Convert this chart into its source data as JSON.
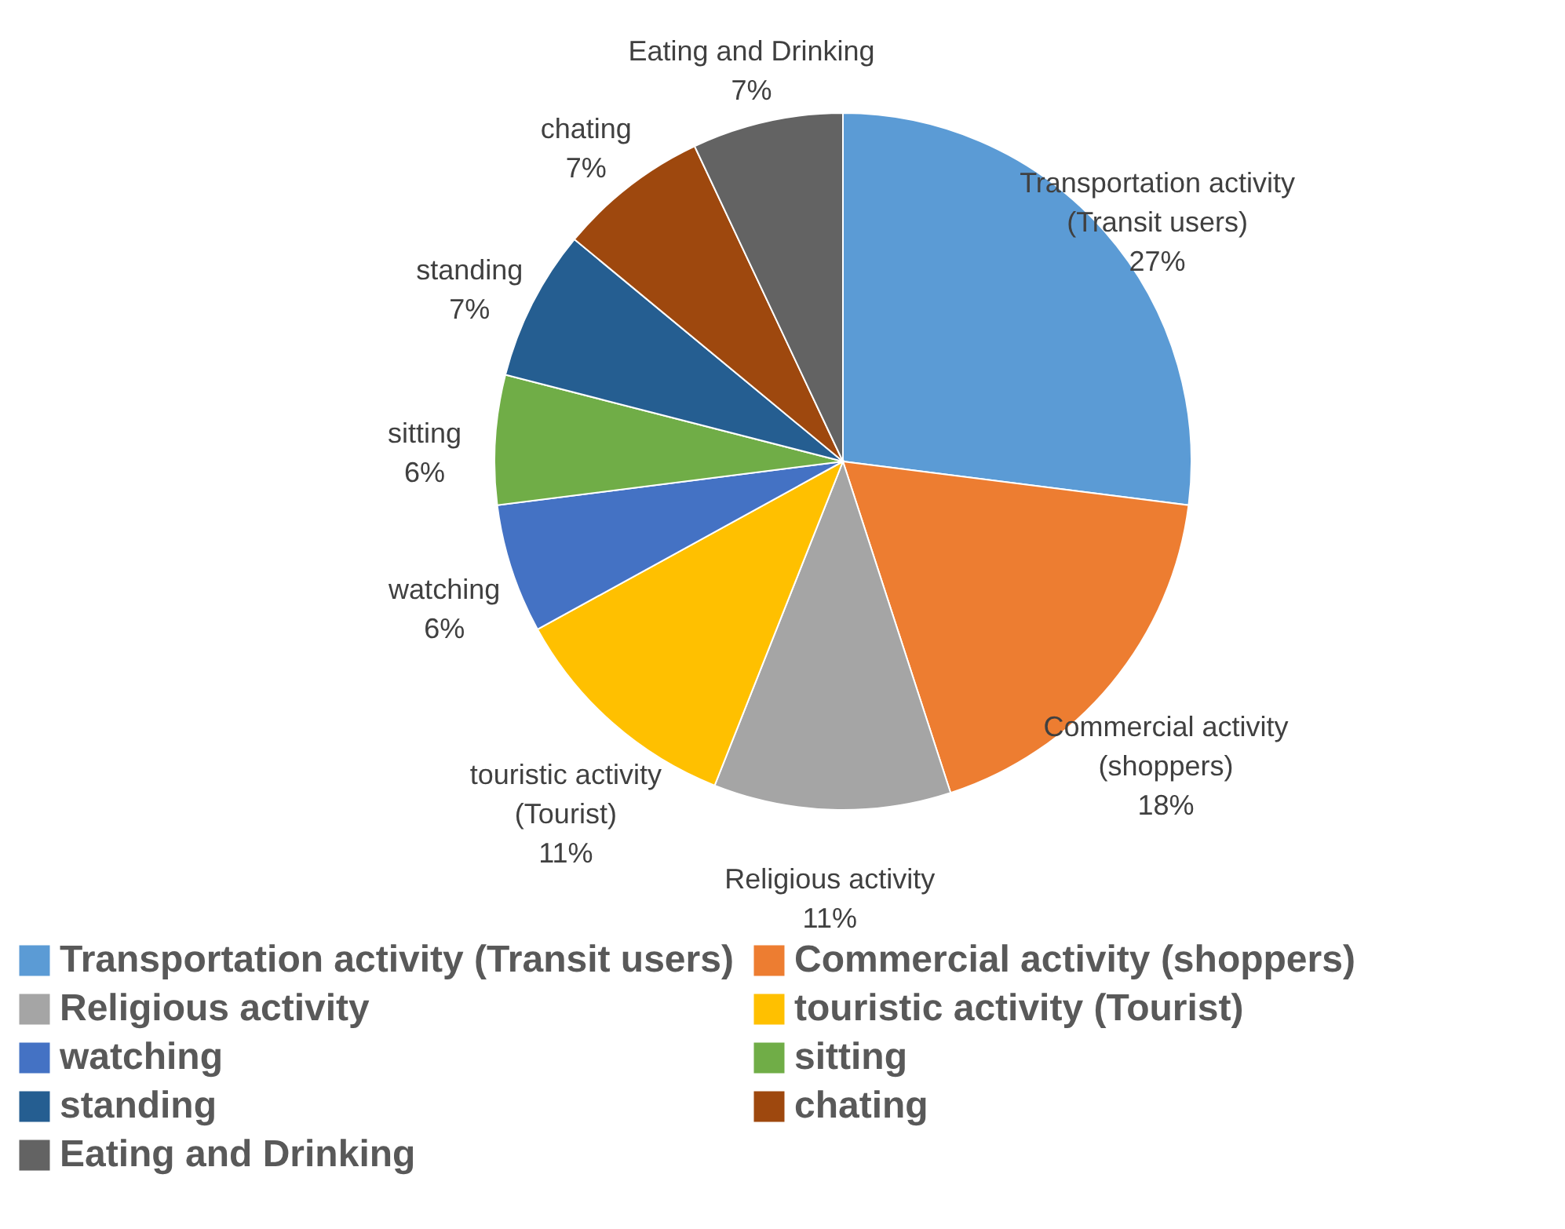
{
  "chart_data": {
    "type": "pie",
    "categories": [
      "Transportation activity (Transit users)",
      "Commercial activity (shoppers)",
      "Religious activity",
      "touristic activity (Tourist)",
      "watching",
      "sitting",
      "standing",
      "chating",
      "Eating and Drinking"
    ],
    "values": [
      27,
      18,
      11,
      11,
      6,
      6,
      7,
      7,
      7
    ],
    "value_labels": [
      "27%",
      "18%",
      "11%",
      "11%",
      "6%",
      "6%",
      "7%",
      "7%",
      "7%"
    ],
    "colors": [
      "#5b9bd5",
      "#ed7d31",
      "#a5a5a5",
      "#ffc000",
      "#4472c4",
      "#70ad47",
      "#255e91",
      "#9e480e",
      "#636363"
    ],
    "legend": "bottom"
  }
}
